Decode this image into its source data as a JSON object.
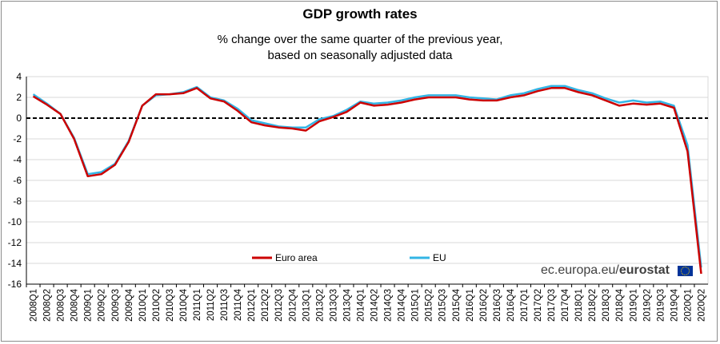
{
  "chart_data": {
    "type": "line",
    "title": "GDP growth rates",
    "subtitle_lines": [
      "% change over the same quarter of the previous year,",
      "based on seasonally adjusted data"
    ],
    "x": [
      "2008Q1",
      "2008Q2",
      "2008Q3",
      "2008Q4",
      "2009Q1",
      "2009Q2",
      "2009Q3",
      "2009Q4",
      "2010Q1",
      "2010Q2",
      "2010Q3",
      "2010Q4",
      "2011Q1",
      "2011Q2",
      "2011Q3",
      "2011Q4",
      "2012Q1",
      "2012Q2",
      "2012Q3",
      "2012Q4",
      "2013Q1",
      "2013Q2",
      "2013Q3",
      "2013Q4",
      "2014Q1",
      "2014Q2",
      "2014Q3",
      "2014Q4",
      "2015Q1",
      "2015Q2",
      "2015Q3",
      "2015Q4",
      "2016Q1",
      "2016Q2",
      "2016Q3",
      "2016Q4",
      "2017Q1",
      "2017Q2",
      "2017Q3",
      "2017Q4",
      "2018Q1",
      "2018Q2",
      "2018Q3",
      "2018Q4",
      "2019Q1",
      "2019Q2",
      "2019Q3",
      "2019Q4",
      "2020Q1",
      "2020Q2"
    ],
    "series": [
      {
        "name": "Euro area",
        "color": "#cc0000",
        "values": [
          2.1,
          1.3,
          0.4,
          -2.0,
          -5.6,
          -5.4,
          -4.5,
          -2.3,
          1.2,
          2.3,
          2.3,
          2.4,
          2.9,
          1.9,
          1.6,
          0.7,
          -0.4,
          -0.7,
          -0.9,
          -1.0,
          -1.2,
          -0.3,
          0.1,
          0.6,
          1.5,
          1.2,
          1.3,
          1.5,
          1.8,
          2.0,
          2.0,
          2.0,
          1.8,
          1.7,
          1.7,
          2.0,
          2.2,
          2.6,
          2.9,
          2.9,
          2.5,
          2.2,
          1.7,
          1.2,
          1.4,
          1.3,
          1.4,
          1.0,
          -3.2,
          -15.0
        ]
      },
      {
        "name": "EU",
        "color": "#33b5e5",
        "values": [
          2.3,
          1.4,
          0.4,
          -1.9,
          -5.4,
          -5.2,
          -4.4,
          -2.2,
          1.2,
          2.2,
          2.3,
          2.5,
          3.0,
          2.0,
          1.7,
          0.9,
          -0.2,
          -0.5,
          -0.8,
          -0.9,
          -0.9,
          -0.1,
          0.2,
          0.8,
          1.6,
          1.4,
          1.5,
          1.7,
          2.0,
          2.2,
          2.2,
          2.2,
          2.0,
          1.9,
          1.8,
          2.2,
          2.4,
          2.8,
          3.1,
          3.1,
          2.7,
          2.4,
          1.9,
          1.5,
          1.7,
          1.5,
          1.6,
          1.2,
          -2.6,
          -14.4
        ]
      }
    ],
    "yticks": [
      4,
      2,
      0,
      -2,
      -4,
      -6,
      -8,
      -10,
      -12,
      -14,
      -16
    ],
    "ylim": [
      -16,
      4
    ],
    "xlabel": "",
    "ylabel": "",
    "grid": "horizontal",
    "legend": "bottom-right"
  },
  "source": {
    "plain": "ec.europa.eu/",
    "bold": "eurostat"
  },
  "colors": {
    "grid": "#d9d9d9",
    "zero_line": "#000000",
    "flag": "#003399"
  }
}
